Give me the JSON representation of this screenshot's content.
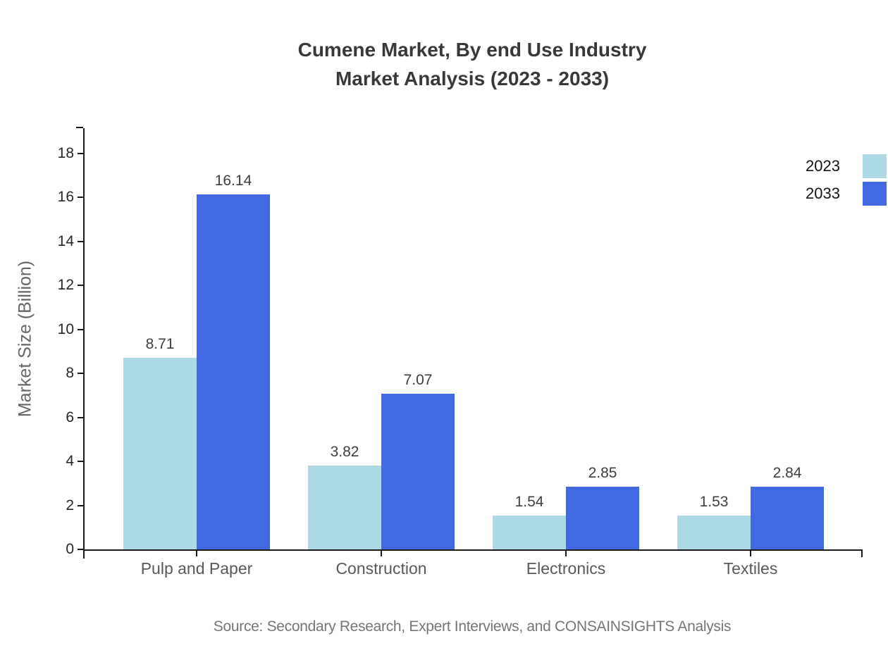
{
  "title": {
    "line1": "Cumene Market, By end Use Industry",
    "line2": "Market Analysis (2023 - 2033)"
  },
  "chart_data": {
    "type": "bar",
    "categories": [
      "Pulp and Paper",
      "Construction",
      "Electronics",
      "Textiles"
    ],
    "series": [
      {
        "name": "2023",
        "color": "#ADD8E6",
        "values": [
          8.71,
          3.82,
          1.54,
          1.53
        ]
      },
      {
        "name": "2033",
        "color": "#4169E1",
        "values": [
          16.14,
          7.07,
          2.85,
          2.84
        ]
      }
    ],
    "title": "Cumene Market, By end Use Industry Market Analysis (2023 - 2033)",
    "xlabel": "",
    "ylabel": "Market Size (Billion)",
    "ylim": [
      0,
      18
    ],
    "yticks": [
      0,
      2,
      4,
      6,
      8,
      10,
      12,
      14,
      16,
      18
    ],
    "grid": false,
    "value_labels": true,
    "legend_position": "top-right"
  },
  "source": "Source: Secondary Research, Expert Interviews, and CONSAINSIGHTS Analysis",
  "colors": {
    "series_2023": "#ADD8E6",
    "series_2033": "#4169E1",
    "axis": "#1a1a1a",
    "title_text": "#383838",
    "category_text": "#595959",
    "source_text": "#757575"
  }
}
